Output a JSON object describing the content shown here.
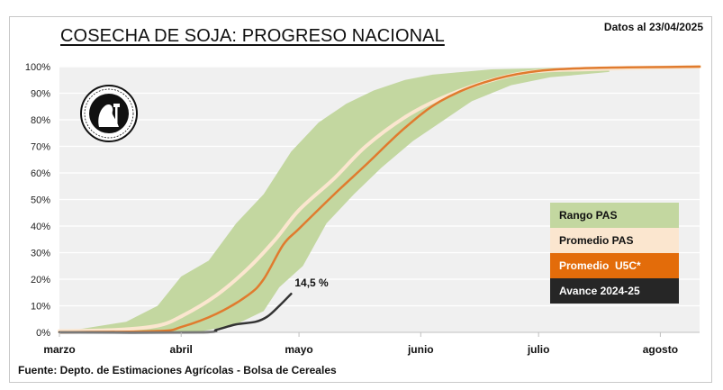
{
  "header": {
    "title": "COSECHA DE SOJA: PROGRESO NACIONAL",
    "date_label": "Datos al 23/04/2025"
  },
  "footer": {
    "source": "Fuente: Depto. de Estimaciones Agrícolas - Bolsa de Cereales"
  },
  "logo": {
    "icon": "bolsa-de-cereales-seal-icon",
    "text_top": "Constantia · et · Labore",
    "text_bottom": "Buenos Aires · 1854"
  },
  "colors": {
    "plot_background": "#f0f0f0",
    "gridline": "#ffffff",
    "rango_pas": "#c3d7a0",
    "promedio_pas": "#fbe6cf",
    "promedio_u5c": "#e07b2e",
    "avance": "#333333"
  },
  "chart_data": {
    "type": "area",
    "title": "COSECHA DE SOJA: PROGRESO NACIONAL",
    "xlabel": "",
    "ylabel": "",
    "x_unit": "days since March 1",
    "xlim": [
      0,
      163
    ],
    "ylim": [
      0,
      100
    ],
    "grid": true,
    "x_ticks": [
      {
        "label": "marzo",
        "x": 0
      },
      {
        "label": "abril",
        "x": 31
      },
      {
        "label": "mayo",
        "x": 61
      },
      {
        "label": "junio",
        "x": 92
      },
      {
        "label": "julio",
        "x": 122
      },
      {
        "label": "agosto",
        "x": 153
      }
    ],
    "y_ticks": [
      {
        "label": "0%",
        "y": 0
      },
      {
        "label": "10%",
        "y": 10
      },
      {
        "label": "20%",
        "y": 20
      },
      {
        "label": "30%",
        "y": 30
      },
      {
        "label": "40%",
        "y": 40
      },
      {
        "label": "50%",
        "y": 50
      },
      {
        "label": "60%",
        "y": 60
      },
      {
        "label": "70%",
        "y": 70
      },
      {
        "label": "80%",
        "y": 80
      },
      {
        "label": "90%",
        "y": 90
      },
      {
        "label": "100%",
        "y": 100
      }
    ],
    "legend_position": "bottom-right",
    "series": [
      {
        "name": "Rango PAS",
        "kind": "band",
        "upper": [
          [
            0,
            0
          ],
          [
            17,
            4
          ],
          [
            25,
            10
          ],
          [
            31,
            21
          ],
          [
            38,
            27
          ],
          [
            45,
            41
          ],
          [
            52,
            52
          ],
          [
            59,
            68
          ],
          [
            66,
            79
          ],
          [
            73,
            86
          ],
          [
            80,
            91
          ],
          [
            88,
            95
          ],
          [
            95,
            97
          ],
          [
            110,
            99
          ],
          [
            125,
            99.5
          ],
          [
            140,
            99.5
          ]
        ],
        "lower": [
          [
            0,
            0
          ],
          [
            35,
            0
          ],
          [
            45,
            3
          ],
          [
            52,
            8
          ],
          [
            56,
            17
          ],
          [
            62,
            25
          ],
          [
            68,
            41
          ],
          [
            75,
            52
          ],
          [
            82,
            62
          ],
          [
            90,
            72
          ],
          [
            97,
            79
          ],
          [
            105,
            87
          ],
          [
            115,
            93
          ],
          [
            125,
            96
          ],
          [
            140,
            98
          ]
        ]
      },
      {
        "name": "Promedio PAS",
        "kind": "line",
        "points": [
          [
            0,
            0.5
          ],
          [
            15,
            1
          ],
          [
            25,
            2.5
          ],
          [
            31,
            6
          ],
          [
            40,
            14
          ],
          [
            48,
            24
          ],
          [
            55,
            35
          ],
          [
            61,
            46
          ],
          [
            70,
            58
          ],
          [
            78,
            70
          ],
          [
            88,
            81
          ],
          [
            97,
            88
          ],
          [
            108,
            94
          ],
          [
            120,
            98
          ],
          [
            135,
            99
          ],
          [
            163,
            100
          ]
        ]
      },
      {
        "name": "Promedio  U5C*",
        "kind": "line",
        "points": [
          [
            0,
            0
          ],
          [
            25,
            0.5
          ],
          [
            31,
            2
          ],
          [
            40,
            7
          ],
          [
            48,
            14
          ],
          [
            52,
            20
          ],
          [
            57,
            33
          ],
          [
            61,
            39
          ],
          [
            70,
            52
          ],
          [
            78,
            63
          ],
          [
            88,
            77
          ],
          [
            97,
            87
          ],
          [
            108,
            94
          ],
          [
            120,
            98
          ],
          [
            135,
            99.5
          ],
          [
            163,
            100
          ]
        ]
      },
      {
        "name": "Avance 2024-25",
        "kind": "line",
        "points": [
          [
            0,
            0
          ],
          [
            36,
            0
          ],
          [
            40,
            1
          ],
          [
            45,
            3
          ],
          [
            50,
            4
          ],
          [
            53,
            6
          ],
          [
            56,
            10
          ],
          [
            59,
            14.5
          ]
        ],
        "end_label": "14,5 %"
      }
    ]
  }
}
